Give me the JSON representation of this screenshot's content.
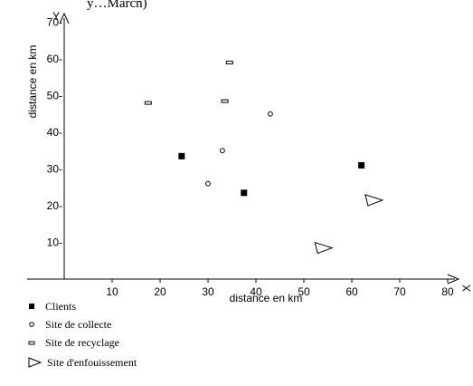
{
  "header_fragment": "y…Marcn)",
  "chart_data": {
    "type": "scatter",
    "title": "",
    "xlabel": "distance en km",
    "ylabel": "distance en km",
    "x_axis_letter": "X",
    "y_axis_letter": "Y",
    "xlim": [
      0,
      85
    ],
    "ylim": [
      0,
      75
    ],
    "x_ticks": [
      10,
      20,
      30,
      40,
      50,
      60,
      70,
      80
    ],
    "y_ticks": [
      10,
      20,
      30,
      40,
      50,
      60,
      70
    ],
    "tick_suffix": "-",
    "grid": false,
    "legend_position": "bottom-left",
    "series": [
      {
        "name": "Clients",
        "marker": "filled-square",
        "points": [
          [
            24.5,
            33.5
          ],
          [
            37.5,
            23.5
          ],
          [
            62,
            31
          ]
        ]
      },
      {
        "name": "Site de collecte",
        "marker": "small-circle",
        "points": [
          [
            30,
            26
          ],
          [
            33,
            35
          ],
          [
            43,
            45
          ]
        ]
      },
      {
        "name": "Site de recyclage",
        "marker": "small-rectangle",
        "points": [
          [
            17.5,
            48
          ],
          [
            33.5,
            48.5
          ],
          [
            34.5,
            59
          ]
        ]
      },
      {
        "name": "Site d'enfouissement",
        "marker": "triangle",
        "points": [
          [
            64.5,
            21.5
          ],
          [
            54,
            8.5
          ]
        ]
      }
    ]
  }
}
